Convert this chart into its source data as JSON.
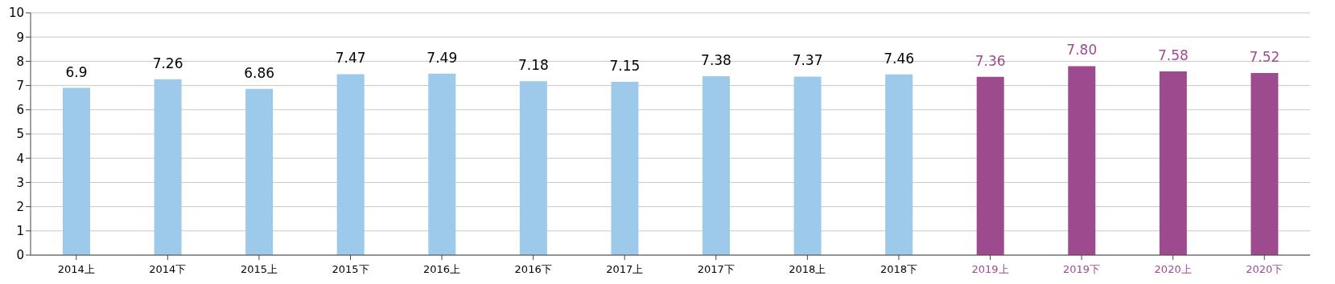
{
  "chart_data": {
    "type": "bar",
    "categories": [
      "2014上",
      "2014下",
      "2015上",
      "2015下",
      "2016上",
      "2016下",
      "2017上",
      "2017下",
      "2018上",
      "2018下",
      "2019上",
      "2019下",
      "2020上",
      "2020下"
    ],
    "values": [
      6.9,
      7.26,
      6.86,
      7.47,
      7.49,
      7.18,
      7.15,
      7.38,
      7.37,
      7.46,
      7.36,
      7.8,
      7.58,
      7.52
    ],
    "value_labels": [
      "6.9",
      "7.26",
      "6.86",
      "7.47",
      "7.49",
      "7.18",
      "7.15",
      "7.38",
      "7.37",
      "7.46",
      "7.36",
      "7.80",
      "7.58",
      "7.52"
    ],
    "colors": [
      "#9dc9ea",
      "#9dc9ea",
      "#9dc9ea",
      "#9dc9ea",
      "#9dc9ea",
      "#9dc9ea",
      "#9dc9ea",
      "#9dc9ea",
      "#9dc9ea",
      "#9dc9ea",
      "#9e4a8e",
      "#9e4a8e",
      "#9e4a8e",
      "#9e4a8e"
    ],
    "ylim": [
      0,
      10
    ],
    "yticks": [
      0,
      1,
      2,
      3,
      4,
      5,
      6,
      7,
      8,
      9,
      10
    ],
    "grid": "y"
  }
}
